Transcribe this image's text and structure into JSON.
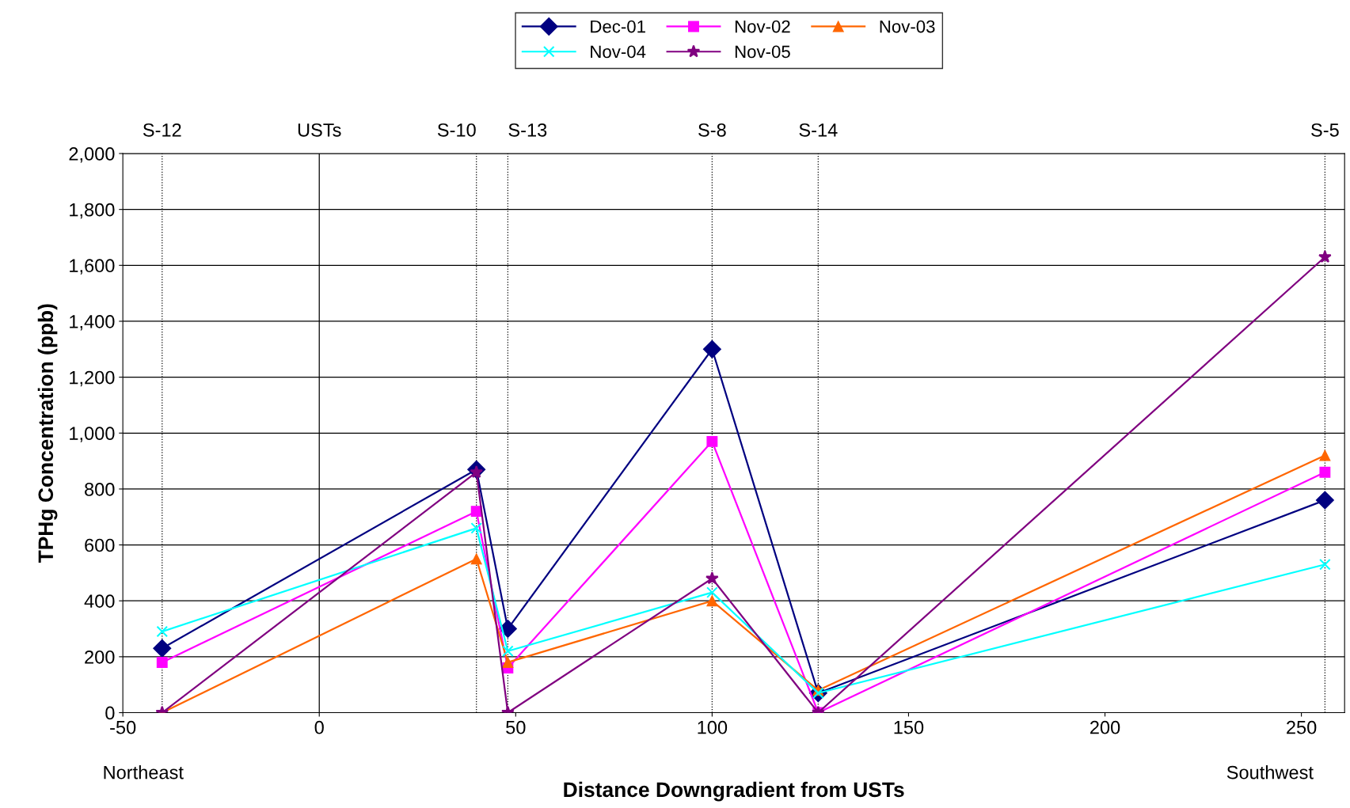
{
  "chart_data": {
    "type": "line",
    "xlabel": "Distance Downgradient from USTs",
    "ylabel": "TPHg Concentration (ppb)",
    "xlim": [
      -50,
      261
    ],
    "xticks": [
      -50,
      0,
      50,
      100,
      150,
      200,
      250
    ],
    "ylim": [
      0,
      2000
    ],
    "yticks": [
      0,
      200,
      400,
      600,
      800,
      {
        "value": 1000,
        "label": "1,000"
      },
      {
        "value": 1200,
        "label": "1,200"
      },
      {
        "value": 1400,
        "label": "1,400"
      },
      {
        "value": 1600,
        "label": "1,600"
      },
      {
        "value": 1800,
        "label": "1,800"
      },
      {
        "value": 2000,
        "label": "2,000"
      }
    ],
    "x": [
      -40,
      40,
      48,
      100,
      127,
      256
    ],
    "series": [
      {
        "name": "Dec-01",
        "color": "#000080",
        "marker": "diamond",
        "values": [
          230,
          870,
          300,
          1300,
          70,
          760
        ]
      },
      {
        "name": "Nov-02",
        "color": "#ff00ff",
        "marker": "square",
        "values": [
          180,
          720,
          160,
          970,
          0,
          860
        ]
      },
      {
        "name": "Nov-03",
        "color": "#ff6600",
        "marker": "triangle",
        "values": [
          0,
          550,
          180,
          400,
          80,
          920
        ]
      },
      {
        "name": "Nov-04",
        "color": "#00ffff",
        "marker": "cross",
        "values": [
          290,
          660,
          220,
          430,
          70,
          530
        ]
      },
      {
        "name": "Nov-05",
        "color": "#800080",
        "marker": "star",
        "values": [
          0,
          860,
          0,
          480,
          0,
          1630
        ]
      }
    ],
    "ref_lines": [
      {
        "axis": "x",
        "value": -40,
        "label": "S-12",
        "line_style": "dotted"
      },
      {
        "axis": "x",
        "value": 0,
        "label": "USTs",
        "line_style": "solid"
      },
      {
        "axis": "x",
        "value": 40,
        "label": "S-10",
        "line_style": "dotted"
      },
      {
        "axis": "x",
        "value": 48,
        "label": "S-13",
        "line_style": "dotted"
      },
      {
        "axis": "x",
        "value": 100,
        "label": "S-8",
        "line_style": "dotted"
      },
      {
        "axis": "x",
        "value": 127,
        "label": "S-14",
        "line_style": "dotted"
      },
      {
        "axis": "x",
        "value": 256,
        "label": "S-5",
        "line_style": "dotted"
      }
    ],
    "annotations": [
      "Northeast",
      "Southwest"
    ],
    "grid": "y",
    "legend": "top",
    "line_style": "solid"
  }
}
